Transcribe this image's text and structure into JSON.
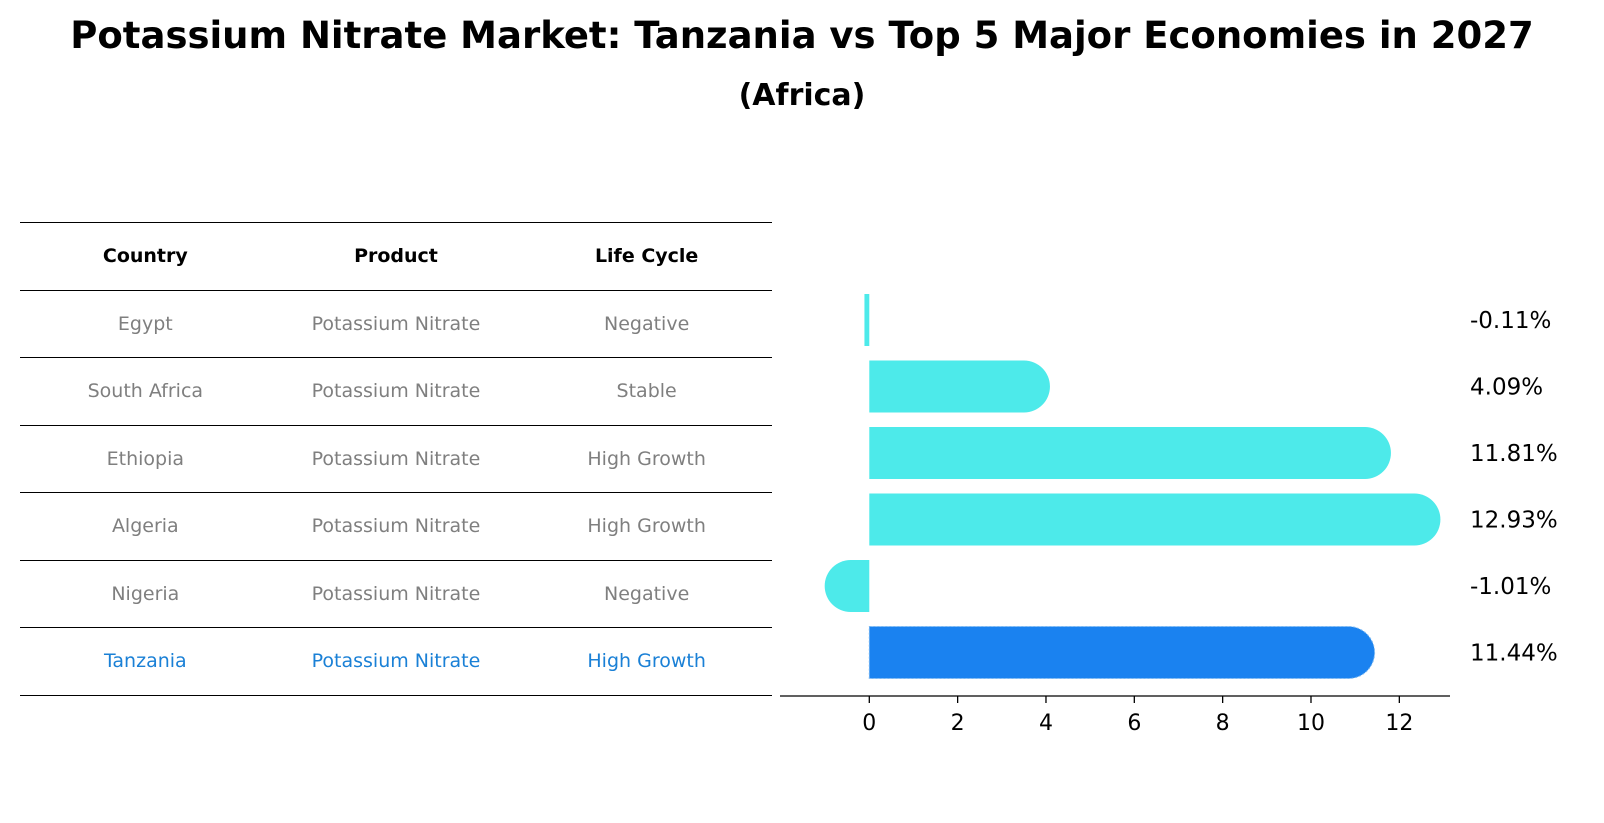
{
  "title": "Potassium Nitrate Market: Tanzania vs Top 5 Major Economies in 2027",
  "subtitle": "(Africa)",
  "table": {
    "headers": [
      "Country",
      "Product",
      "Life Cycle"
    ],
    "rows": [
      {
        "country": "Egypt",
        "product": "Potassium Nitrate",
        "life_cycle": "Negative"
      },
      {
        "country": "South Africa",
        "product": "Potassium Nitrate",
        "life_cycle": "Stable"
      },
      {
        "country": "Ethiopia",
        "product": "Potassium Nitrate",
        "life_cycle": "High Growth"
      },
      {
        "country": "Algeria",
        "product": "Potassium Nitrate",
        "life_cycle": "High Growth"
      },
      {
        "country": "Nigeria",
        "product": "Potassium Nitrate",
        "life_cycle": "Negative"
      },
      {
        "country": "Tanzania",
        "product": "Potassium Nitrate",
        "life_cycle": "High Growth"
      }
    ]
  },
  "colors": {
    "bar": "#4deaea",
    "highlight_bar": "#1a82f0",
    "highlight_text": "#1a80d6",
    "muted_text": "#7f7f7f"
  },
  "chart_data": {
    "type": "bar",
    "orientation": "horizontal",
    "categories": [
      "Egypt",
      "South Africa",
      "Ethiopia",
      "Algeria",
      "Nigeria",
      "Tanzania"
    ],
    "values": [
      -0.11,
      4.09,
      11.81,
      12.93,
      -1.01,
      11.44
    ],
    "value_labels": [
      "-0.11%",
      "4.09%",
      "11.81%",
      "12.93%",
      "-1.01%",
      "11.44%"
    ],
    "highlight": "Tanzania",
    "xlim": [
      -1.75,
      13.6
    ],
    "xticks": [
      0,
      2,
      4,
      6,
      8,
      10,
      12
    ],
    "xlabel": "",
    "ylabel": "",
    "grid": false
  }
}
